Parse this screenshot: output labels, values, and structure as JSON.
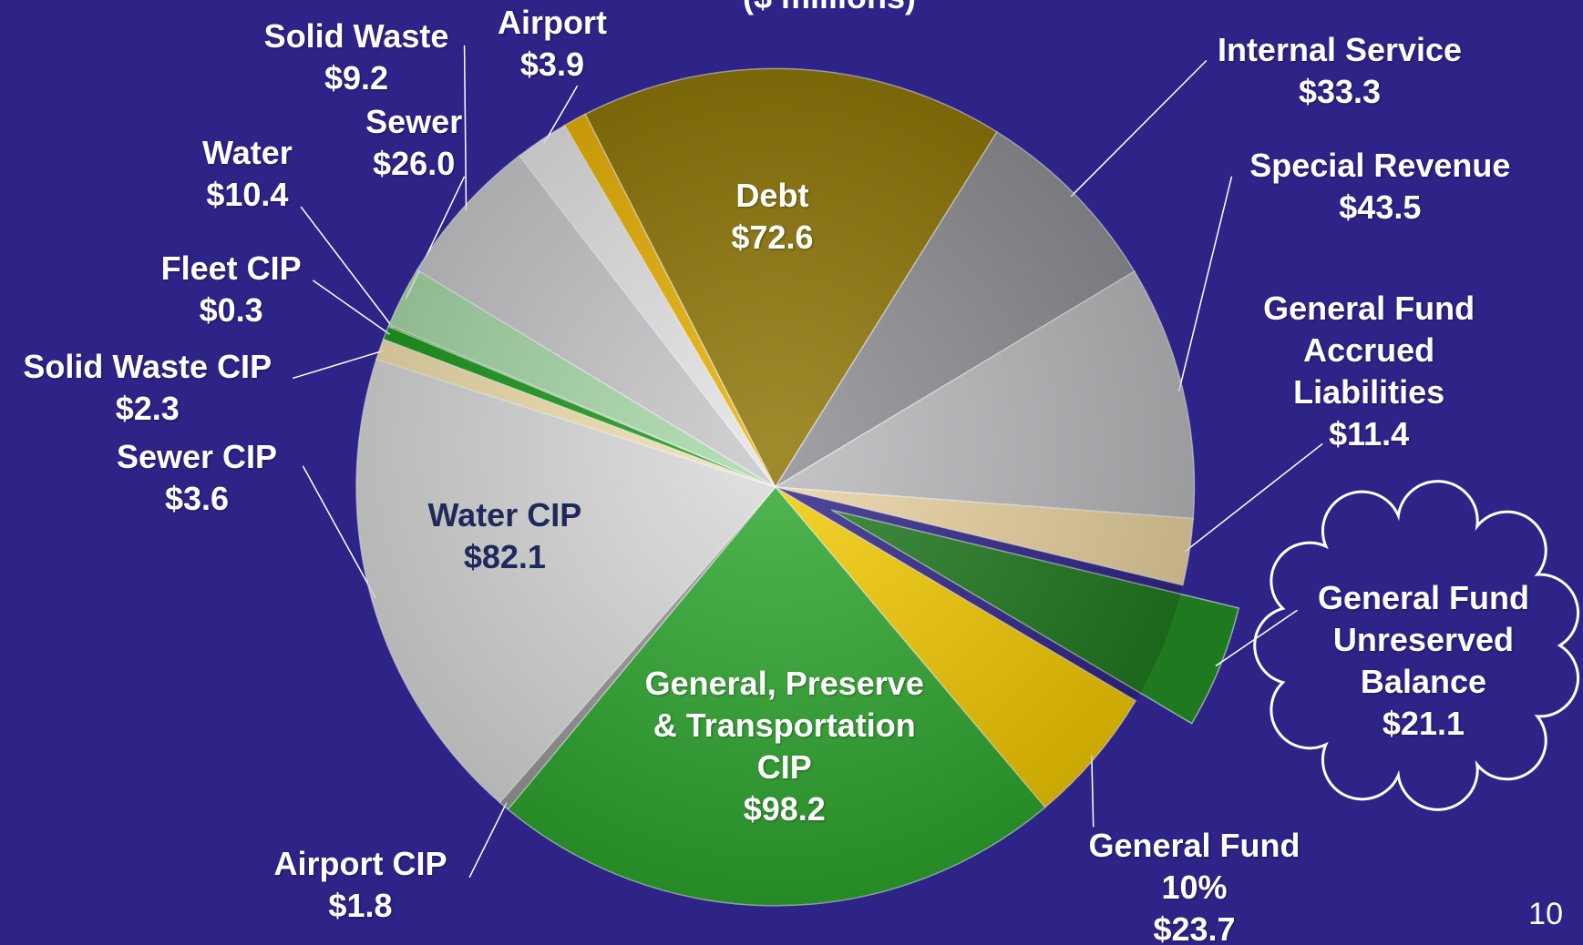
{
  "chart_data": {
    "type": "pie",
    "subtitle": "($ millions)",
    "page_number": "10",
    "categories": [
      "Debt",
      "Internal Service",
      "Special Revenue",
      "General Fund Accrued Liabilities",
      "General Fund Unreserved Balance",
      "General Fund 10%",
      "General, Preserve & Transportation CIP",
      "Airport CIP",
      "Water CIP",
      "Sewer CIP",
      "Solid Waste CIP",
      "Fleet CIP",
      "Water",
      "Sewer",
      "Solid Waste",
      "Airport"
    ],
    "values": [
      72.6,
      33.3,
      43.5,
      11.4,
      21.1,
      23.7,
      98.2,
      1.8,
      82.1,
      3.6,
      2.3,
      0.3,
      10.4,
      26.0,
      9.2,
      3.9
    ],
    "value_labels": [
      "$72.6",
      "$33.3",
      "$43.5",
      "$11.4",
      "$21.1",
      "$23.7",
      "$98.2",
      "$1.8",
      "$82.1",
      "$3.6",
      "$2.3",
      "$0.3",
      "$10.4",
      "$26.0",
      "$9.2",
      "$3.9"
    ],
    "colors": [
      "#8b7300",
      "#8c8c92",
      "#b9b9bd",
      "#ead3a0",
      "#1f7a1f",
      "#f5cc00",
      "#2ea82e",
      "#9a9a9a",
      "#dcdcdc",
      "#f5e3b0",
      "#1a9a1a",
      "#2db52d",
      "#a9dba9",
      "#c8c8cc",
      "#e4e4e6",
      "#e8b000"
    ],
    "exploded": [
      4
    ]
  }
}
